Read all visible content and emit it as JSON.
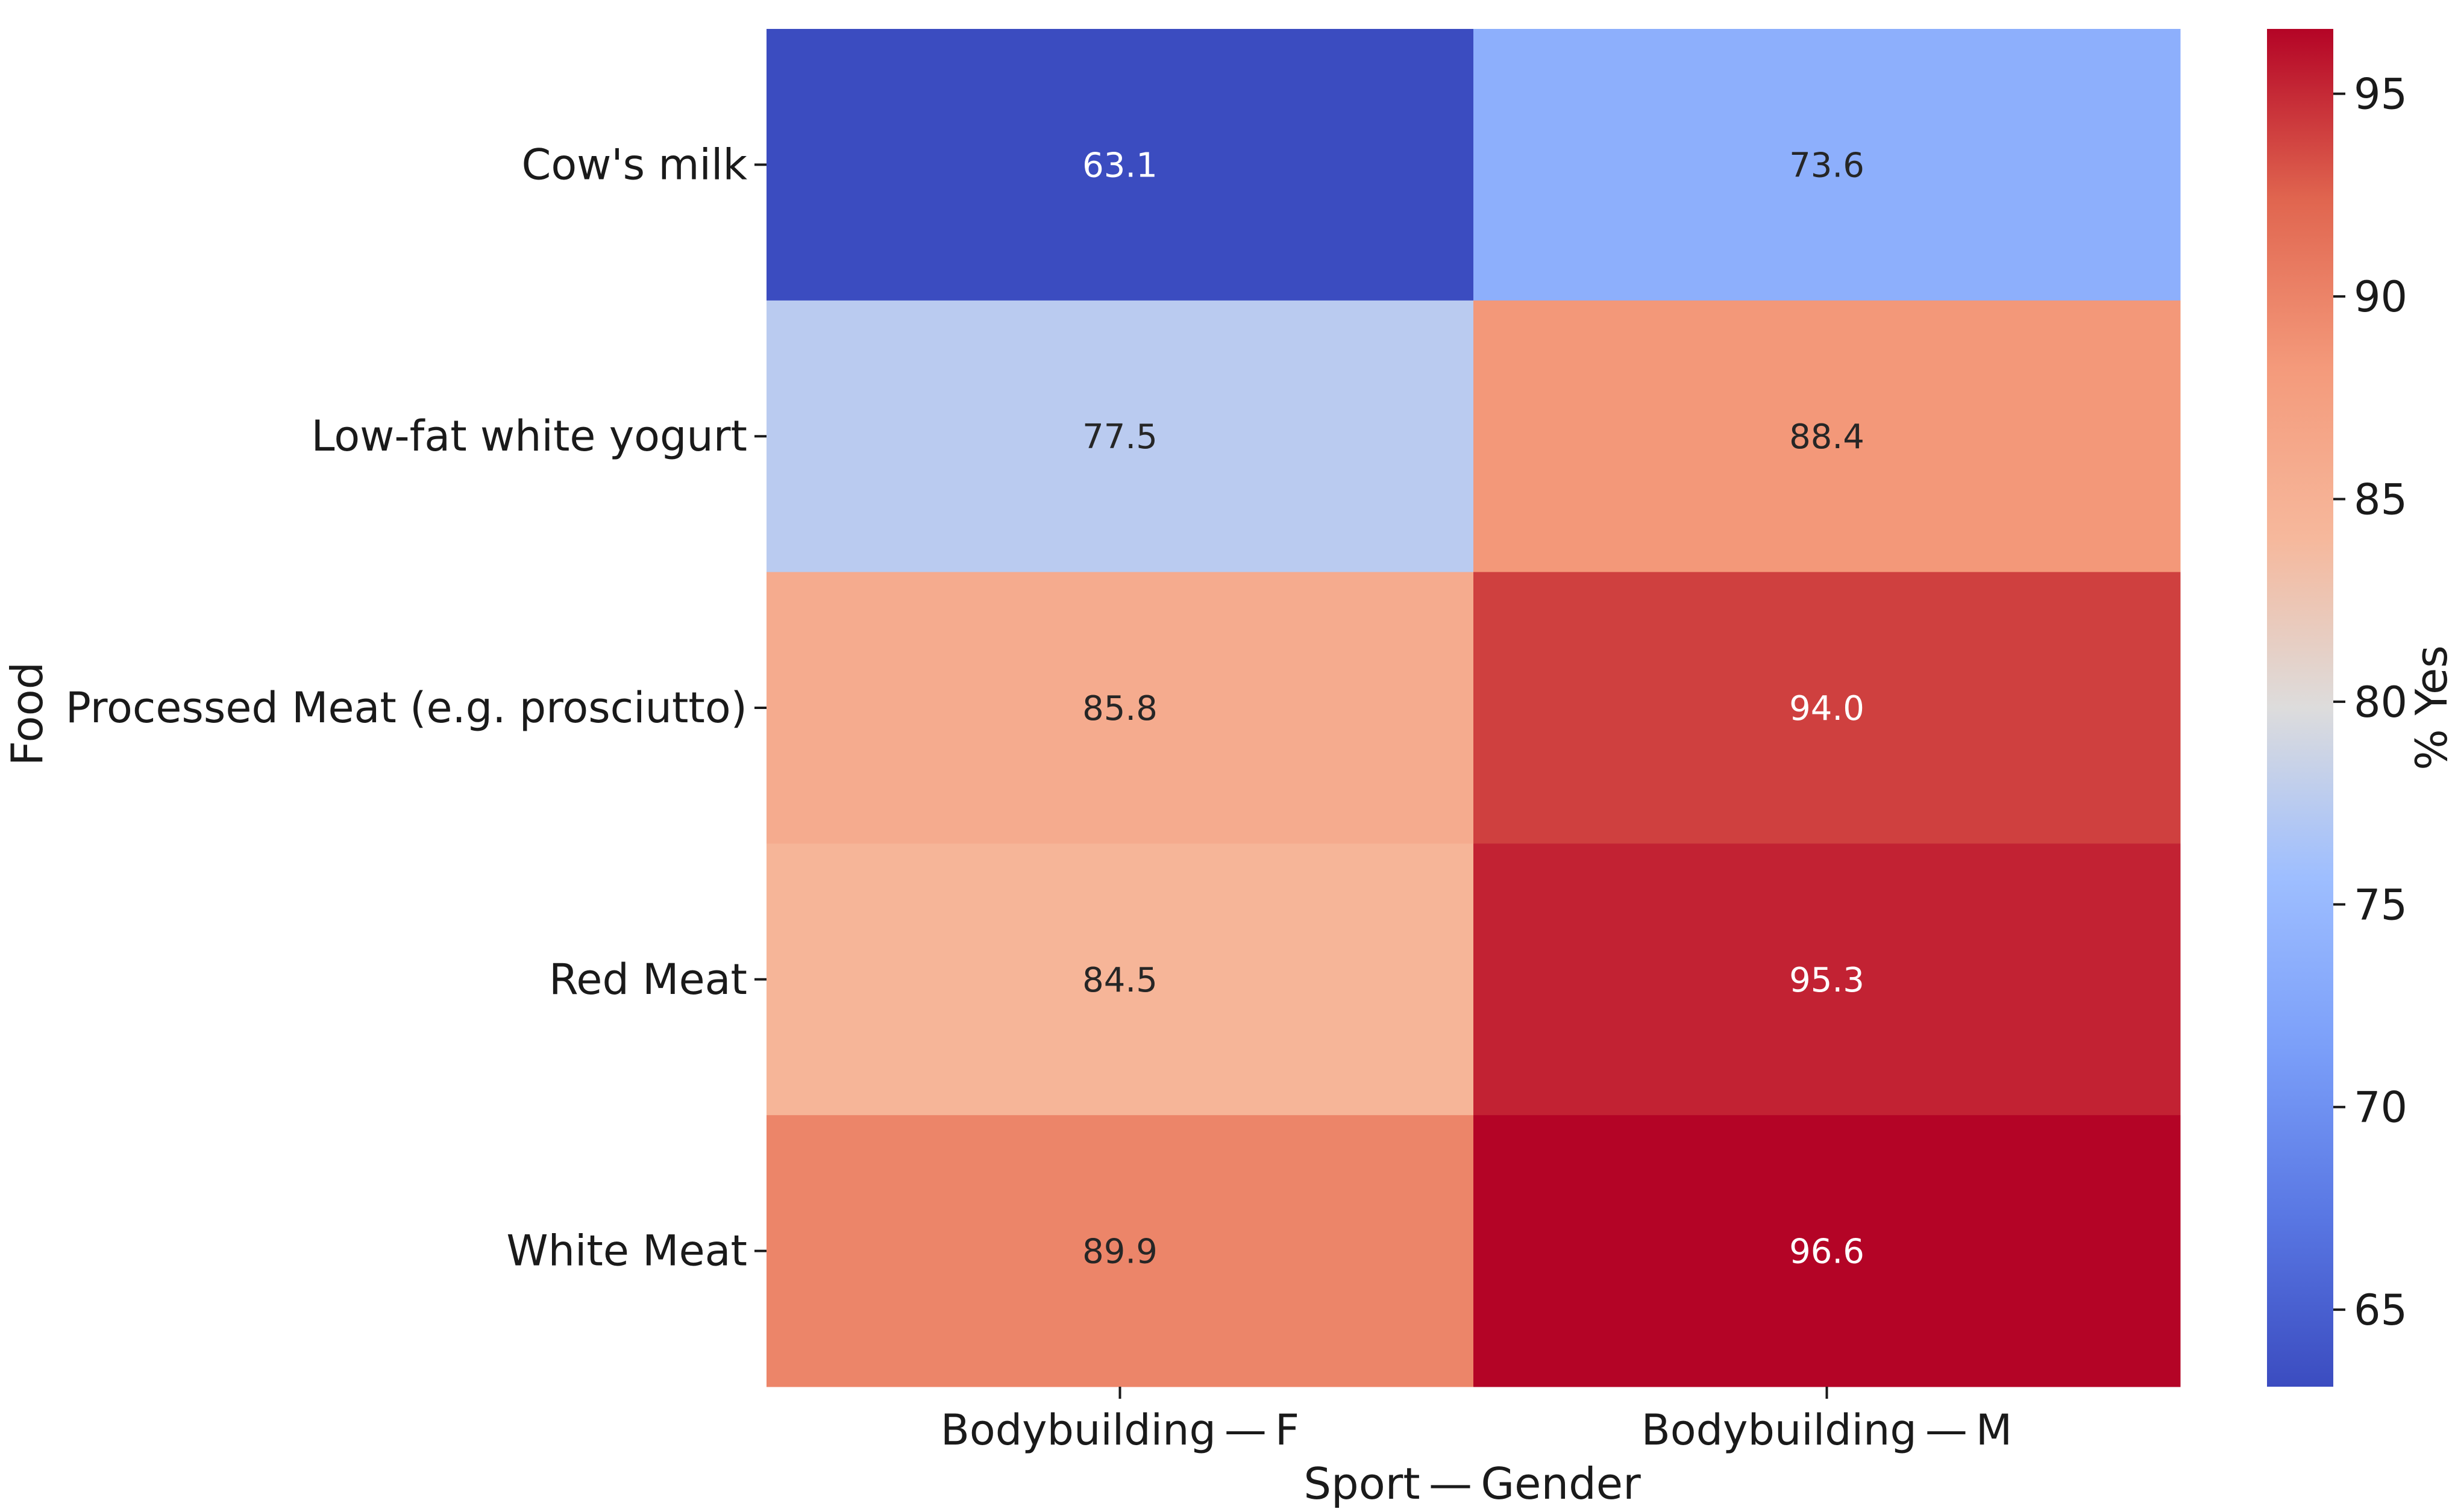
{
  "chart_data": {
    "type": "heatmap",
    "title": "",
    "xlabel": "Sport — Gender",
    "ylabel": "Food",
    "x_categories": [
      "Bodybuilding — F",
      "Bodybuilding — M"
    ],
    "y_categories": [
      "Cow's milk",
      "Low-fat white yogurt",
      "Processed Meat (e.g. prosciutto)",
      "Red Meat",
      "White Meat"
    ],
    "values": [
      [
        63.1,
        73.6
      ],
      [
        77.5,
        88.4
      ],
      [
        85.8,
        94.0
      ],
      [
        84.5,
        95.3
      ],
      [
        89.9,
        96.6
      ]
    ],
    "value_format": "0.0",
    "colormap": "coolwarm",
    "colorbar": {
      "label": "% Yes",
      "range": [
        63.1,
        96.6
      ],
      "ticks": [
        65,
        70,
        75,
        80,
        85,
        90,
        95
      ]
    }
  }
}
